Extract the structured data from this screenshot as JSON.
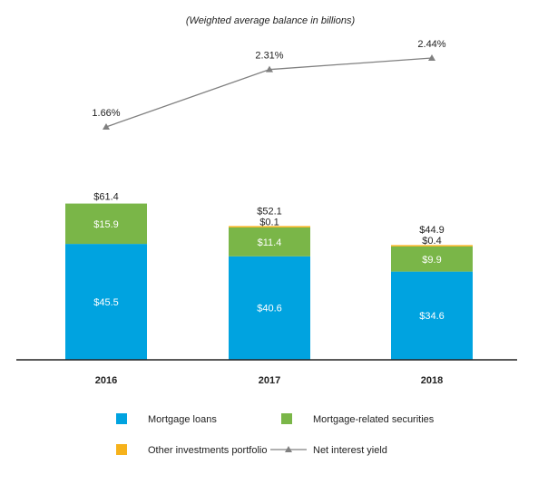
{
  "chart_data": {
    "type": "bar",
    "subtitle": "(Weighted average balance in billions)",
    "categories": [
      "2016",
      "2017",
      "2018"
    ],
    "series": [
      {
        "name": "Mortgage loans",
        "values": [
          45.5,
          40.6,
          34.6
        ],
        "labels": [
          "$45.5",
          "$40.6",
          "$34.6"
        ],
        "color": "#00a3e0"
      },
      {
        "name": "Mortgage-related securities",
        "values": [
          15.9,
          11.4,
          9.9
        ],
        "labels": [
          "$15.9",
          "$11.4",
          "$9.9"
        ],
        "color": "#7ab648"
      },
      {
        "name": "Other investments portfolio",
        "values": [
          0,
          0.1,
          0.4
        ],
        "labels": [
          "",
          "$0.1",
          "$0.4"
        ],
        "color": "#f6b21b"
      }
    ],
    "totals": [
      "$61.4",
      "$52.1",
      "$44.9"
    ],
    "line": {
      "name": "Net interest yield",
      "values": [
        1.66,
        2.31,
        2.44
      ],
      "labels": [
        "1.66%",
        "2.31%",
        "2.44%"
      ],
      "color": "#808080"
    },
    "ylim": [
      0,
      65
    ],
    "stacked": true
  }
}
